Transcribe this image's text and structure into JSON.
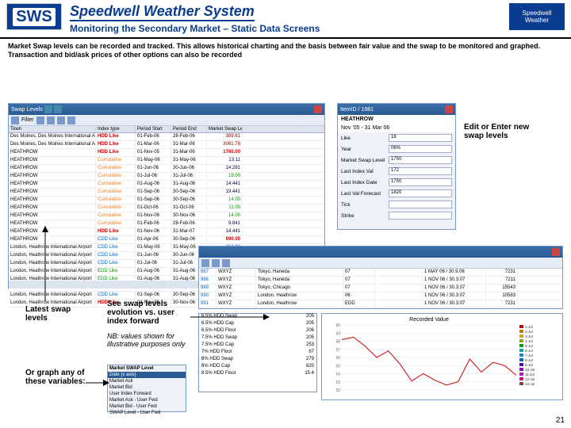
{
  "header": {
    "logo_left": "SWS",
    "title": "Speedwell Weather System",
    "subtitle": "Monitoring the Secondary Market – Static Data Screens",
    "logo_right_top": "Speedwell",
    "logo_right_bottom": "Weather"
  },
  "description": "Market Swap levels can be recorded and tracked. This allows historical charting and the basis between fair value and the swap to be monitored and graphed. Transaction and bid/ask prices of other options can also be recorded",
  "labels": {
    "edit": "Edit or Enter new swap levels",
    "latest": "Latest swap levels",
    "see": "See swap levels evolution vs. user index forward",
    "nb": "NB: values shown for illustrative purposes only",
    "graph": "Or graph any of these variables:"
  },
  "swap_table": {
    "window_title": "Swap Levels",
    "columns": [
      "Town",
      "Index type",
      "Period Start",
      "Period End",
      "Market Swap Level",
      ""
    ],
    "rows": [
      {
        "town": "Des Moines, Des Moines International Airport",
        "idx": "HDD Like",
        "idx_cls": "c-red",
        "ps": "01-Feb-06",
        "pe": "28-Feb-06",
        "lvl": "389.61",
        "lvl_cls": "c-darkred"
      },
      {
        "town": "Des Moines, Des Moines International Airport",
        "idx": "HDD Like",
        "idx_cls": "c-red",
        "ps": "01-Mar-06",
        "pe": "31-Mar-06",
        "lvl": "3061.78",
        "lvl_cls": "c-darkred"
      },
      {
        "town": "HEATHROW",
        "idx": "HDD Like",
        "idx_cls": "c-red",
        "ps": "01-Nov-05",
        "pe": "31-Mar-06",
        "lvl": "1760.00",
        "lvl_cls": "c-red"
      },
      {
        "town": "HEATHROW",
        "idx": "Cumulative",
        "idx_cls": "c-orange",
        "ps": "01-May-06",
        "pe": "31-May-06",
        "lvl": "13.11",
        "lvl_cls": "c-navy"
      },
      {
        "town": "HEATHROW",
        "idx": "Cumulative",
        "idx_cls": "c-orange",
        "ps": "01-Jun-06",
        "pe": "30-Jun-06",
        "lvl": "14.281",
        "lvl_cls": "c-navy"
      },
      {
        "town": "HEATHROW",
        "idx": "Cumulative",
        "idx_cls": "c-orange",
        "ps": "01-Jul-06",
        "pe": "31-Jul-06",
        "lvl": "19.00",
        "lvl_cls": "c-green"
      },
      {
        "town": "HEATHROW",
        "idx": "Cumulative",
        "idx_cls": "c-orange",
        "ps": "01-Aug-06",
        "pe": "31-Aug-06",
        "lvl": "14.441",
        "lvl_cls": "c-navy"
      },
      {
        "town": "HEATHROW",
        "idx": "Cumulative",
        "idx_cls": "c-orange",
        "ps": "01-Sep-06",
        "pe": "30-Sep-06",
        "lvl": "19.441",
        "lvl_cls": "c-navy"
      },
      {
        "town": "HEATHROW",
        "idx": "Cumulative",
        "idx_cls": "c-orange",
        "ps": "01-Sep-06",
        "pe": "30-Sep-06",
        "lvl": "14.00",
        "lvl_cls": "c-green"
      },
      {
        "town": "HEATHROW",
        "idx": "Cumulative",
        "idx_cls": "c-orange",
        "ps": "01-Oct-06",
        "pe": "31-Oct-06",
        "lvl": "11.00",
        "lvl_cls": "c-green"
      },
      {
        "town": "HEATHROW",
        "idx": "Cumulative",
        "idx_cls": "c-orange",
        "ps": "01-Nov-06",
        "pe": "30-Nov-06",
        "lvl": "14.00",
        "lvl_cls": "c-green"
      },
      {
        "town": "HEATHROW",
        "idx": "Cumulative",
        "idx_cls": "c-orange",
        "ps": "01-Feb-06",
        "pe": "28-Feb-06",
        "lvl": "9.841",
        "lvl_cls": "c-navy"
      },
      {
        "town": "HEATHROW",
        "idx": "HDD Like",
        "idx_cls": "c-red",
        "ps": "01-Nov-06",
        "pe": "31-Mar-07",
        "lvl": "14.441",
        "lvl_cls": "c-navy"
      },
      {
        "town": "HEATHROW",
        "idx": "CDD Like",
        "idx_cls": "c-blue",
        "ps": "01-Apr-06",
        "pe": "30-Sep-06",
        "lvl": "990.00",
        "lvl_cls": "c-red"
      },
      {
        "town": "London, Heathrow International Airport",
        "idx": "CDD Like",
        "idx_cls": "c-blue",
        "ps": "01-May-06",
        "pe": "31-May-06",
        "lvl": "210.00",
        "lvl_cls": "c-blue"
      },
      {
        "town": "London, Heathrow International Airport",
        "idx": "CDD Like",
        "idx_cls": "c-blue",
        "ps": "01-Jun-06",
        "pe": "30-Jun-06",
        "lvl": "210.00",
        "lvl_cls": "c-blue"
      },
      {
        "town": "London, Heathrow International Airport",
        "idx": "CDD Like",
        "idx_cls": "c-blue",
        "ps": "01-Jul-06",
        "pe": "31-Jul-06",
        "lvl": "210.00",
        "lvl_cls": "c-blue"
      },
      {
        "town": "London, Heathrow International Airport",
        "idx": "EDD Like",
        "idx_cls": "c-green",
        "ps": "01-Aug-06",
        "pe": "31-Aug-06",
        "lvl": "210.00",
        "lvl_cls": "c-blue"
      },
      {
        "town": "London, Heathrow International Airport",
        "idx": "EDD Like",
        "idx_cls": "c-green",
        "ps": "01-Aug-06",
        "pe": "31-Aug-06",
        "lvl": "210.00",
        "lvl_cls": "c-blue"
      },
      {
        "town": "London, Heathrow International Airport",
        "idx": "CDD Like",
        "idx_cls": "c-blue",
        "ps": "01-Sep-06",
        "pe": "30-Sep-06",
        "lvl": "210.00",
        "lvl_cls": "c-blue"
      },
      {
        "town": "London, Heathrow International Airport",
        "idx": "CDD Like",
        "idx_cls": "c-blue",
        "ps": "01-Sep-06",
        "pe": "30-Sep-06",
        "lvl": "210.00",
        "lvl_cls": "c-blue"
      },
      {
        "town": "London, Heathrow International Airport",
        "idx": "HDD Like",
        "idx_cls": "c-red",
        "ps": "01-Nov-06",
        "pe": "30-Nov-06",
        "lvl": "210.00",
        "lvl_cls": "c-blue"
      }
    ]
  },
  "edit_window": {
    "id_line": "ItemID / 1981",
    "station": "HEATHROW",
    "date_text": "Nov '05 - 31 Mar 06",
    "fields": [
      {
        "label": "Like",
        "val": "18"
      },
      {
        "label": "Year",
        "val": "06%"
      },
      {
        "label": "Market Swap Level",
        "val": "1750"
      },
      {
        "label": "Last Index Val",
        "val": "172"
      },
      {
        "label": "Last Index Date",
        "val": "1750"
      },
      {
        "label": "Last Val Forecast",
        "val": "1820"
      },
      {
        "label": "Tick",
        "val": ""
      },
      {
        "label": "Strike",
        "val": ""
      }
    ]
  },
  "history_table": {
    "columns": [
      "ID",
      "Name",
      "Date",
      "",
      "",
      "",
      ""
    ],
    "rows": [
      {
        "a": "987",
        "b": "WXYZ",
        "c": "Tokyo, Haneda",
        "d": "07",
        "e": "",
        "f": "1 MAY 06 / 30.9.06",
        "g": "7231"
      },
      {
        "a": "988",
        "b": "WXYZ",
        "c": "Tokyo, Haneda",
        "d": "07",
        "e": "",
        "f": "1 NOV 06 / 30.3.07",
        "g": "7211"
      },
      {
        "a": "989",
        "b": "WXYZ",
        "c": "Tokyo, Chicago",
        "d": "07",
        "e": "",
        "f": "1 NOV 06 / 30.3.07",
        "g": "15543"
      },
      {
        "a": "990",
        "b": "WXYZ",
        "c": "London, Heathrow",
        "d": "06",
        "e": "",
        "f": "1 NOV 06 / 30.3.07",
        "g": "10583"
      },
      {
        "a": "991",
        "b": "WXYZ",
        "c": "London, Heathrow",
        "d": "EDD",
        "e": "",
        "f": "1 NOV 06 / 30.3.07",
        "g": "7231"
      }
    ]
  },
  "small_list": {
    "rows": [
      {
        "k": "6.5% HDD Swap",
        "v": "205"
      },
      {
        "k": "6.5% HDD Cap",
        "v": "205"
      },
      {
        "k": "6.5% HDD Floor",
        "v": "206"
      },
      {
        "k": "7.5% HDD Swap",
        "v": "205"
      },
      {
        "k": "7.5% HDD Cap",
        "v": "253"
      },
      {
        "k": "7% HDD Floor",
        "v": "67"
      },
      {
        "k": "8% HDD Swap",
        "v": "279"
      },
      {
        "k": "8% HDD Cap",
        "v": "820"
      },
      {
        "k": "8.5% HDD Floor",
        "v": "15.4"
      }
    ]
  },
  "var_list": {
    "title": "Market SWAP Level",
    "items": [
      "Date (x axis)",
      "Market Ask",
      "Market Bid",
      "User Index Forward",
      "Market Ask - User Fwd",
      "Market Bid - User Fwd",
      "SWAP Level - User Fwd"
    ],
    "selected": 0
  },
  "chart": {
    "title": "Recorded Value",
    "title_fontsize": 7,
    "background_color": "#ffffff",
    "grid_color": "#e0e0e0",
    "line_color": "#cc0000",
    "line_width": 1,
    "xlim": [
      0,
      16
    ],
    "ylim": [
      52,
      60
    ],
    "yticks": [
      52,
      53,
      54,
      55,
      56,
      57,
      58,
      59,
      60
    ],
    "x_labels": [
      "1-Jul",
      "",
      "",
      "",
      "",
      "",
      "",
      "",
      "",
      "",
      "",
      "",
      "",
      "",
      "",
      ""
    ],
    "series": [
      58.2,
      58.5,
      57.4,
      56.0,
      56.8,
      55.2,
      53.1,
      54.0,
      53.2,
      52.6,
      53.0,
      55.8,
      54.2,
      55.4,
      55.0,
      53.8
    ],
    "legend_items": [
      "1-Jul",
      "2-Jul",
      "3-Jul",
      "4-Jul",
      "5-Jul",
      "6-Jul",
      "7-Jul",
      "8-Jul",
      "9-Jul",
      "10-Jul",
      "11-Jul",
      "12-Jul",
      "13-Jul"
    ],
    "legend_colors": [
      "#c00",
      "#c70",
      "#ca0",
      "#8a0",
      "#0a0",
      "#0aa",
      "#08c",
      "#06c",
      "#40c",
      "#80c",
      "#c0c",
      "#c08",
      "#844"
    ]
  },
  "page_number": "21",
  "colors": {
    "brand": "#0a3d8f",
    "titlebar": "#2a5a95"
  }
}
